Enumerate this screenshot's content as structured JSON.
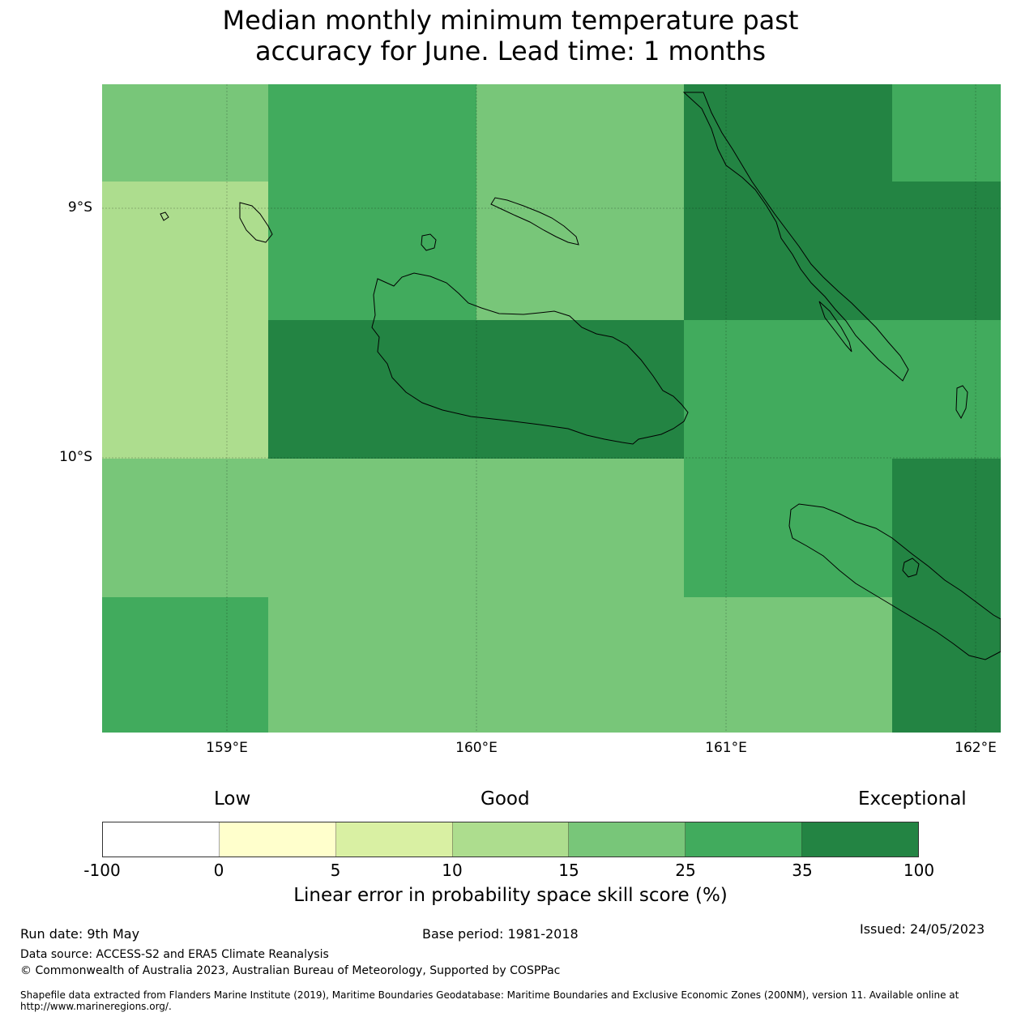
{
  "title_line1": "Median monthly minimum temperature past",
  "title_line2": "accuracy for June. Lead time: 1 months",
  "map": {
    "lat_labels": [
      "9°S",
      "10°S"
    ],
    "lon_labels": [
      "159°E",
      "160°E",
      "161°E",
      "162°E"
    ],
    "colors": {
      "c10_15": "#addd8e",
      "c15_25": "#78c679",
      "c25_35": "#41ab5d",
      "c35_100": "#238443"
    }
  },
  "legend": {
    "low": "Low",
    "good": "Good",
    "exceptional": "Exceptional",
    "colors": [
      "#ffffff",
      "#ffffcc",
      "#d9f0a3",
      "#addd8e",
      "#78c679",
      "#41ab5d",
      "#238443"
    ],
    "ticks": [
      "-100",
      "0",
      "5",
      "10",
      "15",
      "25",
      "35",
      "100"
    ],
    "label": "Linear error in probability space skill score (%)"
  },
  "footer": {
    "run_date": "Run date: 9th May",
    "base_period": "Base period: 1981-2018",
    "issued": "Issued: 24/05/2023",
    "data_source": "Data source: ACCESS-S2 and ERA5 Climate Reanalysis",
    "copyright": "© Commonwealth of Australia 2023, Australian Bureau of Meteorology, Supported by COSPPac",
    "shapefile": "Shapefile data extracted from Flanders Marine Institute (2019), Maritime Boundaries Geodatabase: Maritime Boundaries and Exclusive Economic Zones (200NM), version 11. Available online at http://www.marineregions.org/."
  }
}
